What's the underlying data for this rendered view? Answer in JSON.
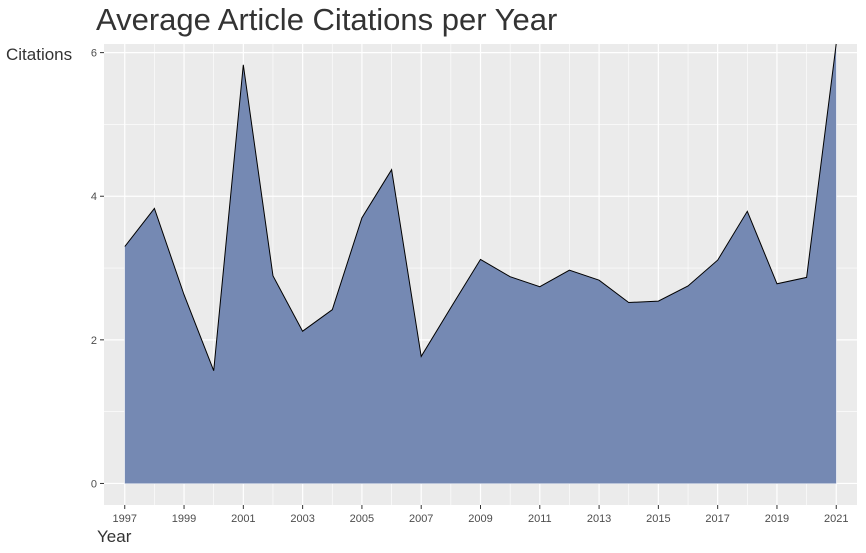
{
  "chart_data": {
    "type": "area",
    "title": "Average Article Citations per Year",
    "xlabel": "Year",
    "ylabel": "Citations",
    "x": [
      1997,
      1998,
      1999,
      2000,
      2001,
      2002,
      2003,
      2004,
      2005,
      2006,
      2007,
      2008,
      2009,
      2010,
      2011,
      2012,
      2013,
      2014,
      2015,
      2016,
      2017,
      2018,
      2019,
      2020,
      2021
    ],
    "values": [
      3.3,
      3.83,
      2.63,
      1.57,
      5.83,
      2.89,
      2.12,
      2.42,
      3.7,
      4.37,
      1.77,
      2.45,
      3.12,
      2.88,
      2.74,
      2.97,
      2.83,
      2.52,
      2.54,
      2.75,
      3.11,
      3.79,
      2.78,
      2.87,
      6.12
    ],
    "x_ticks": [
      "1997",
      "1999",
      "2001",
      "2003",
      "2005",
      "2007",
      "2009",
      "2011",
      "2013",
      "2015",
      "2017",
      "2019",
      "2021"
    ],
    "y_ticks": [
      "0",
      "2",
      "4",
      "6"
    ],
    "xlim": [
      1996.3,
      2021.7
    ],
    "ylim": [
      -0.3,
      6.12
    ],
    "grid": true,
    "fill_color": "#7589b3",
    "line_color": "#000000",
    "panel_color": "#ebebeb",
    "grid_color": "#ffffff"
  }
}
